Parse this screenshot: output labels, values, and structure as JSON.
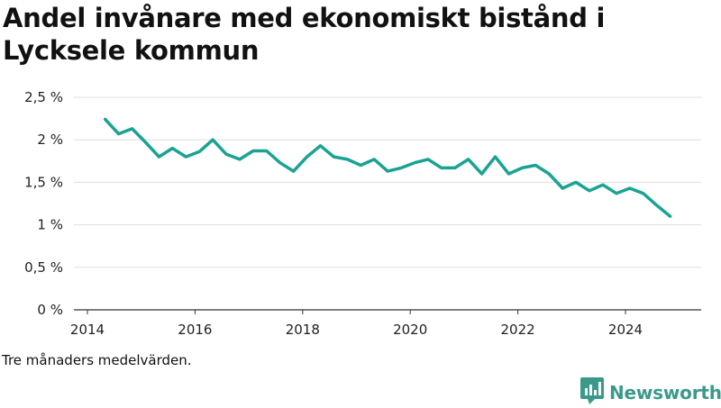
{
  "title": "Andel invånare med ekonomiskt bistånd i Lycksele kommun",
  "footnote": "Tre månaders medelvärden.",
  "brand": {
    "name": "Newsworthy",
    "icon": "newsworthy-logo-icon",
    "color": "#3a9a8a"
  },
  "chart_data": {
    "type": "line",
    "title": "Andel invånare med ekonomiskt bistånd i Lycksele kommun",
    "xlabel": "",
    "ylabel": "",
    "x_ticks": [
      "2014",
      "2016",
      "2018",
      "2020",
      "2022",
      "2024"
    ],
    "y_ticks": [
      "0 %",
      "0,5 %",
      "1 %",
      "1,5 %",
      "2 %",
      "2,5 %"
    ],
    "ylim": [
      0,
      2.5
    ],
    "xlim": [
      2014,
      2024.9
    ],
    "grid": true,
    "line_color": "#1aa393",
    "series": [
      {
        "x": [
          2014.33,
          2014.58,
          2014.83,
          2015.08,
          2015.33,
          2015.58,
          2015.83,
          2016.08,
          2016.33,
          2016.58,
          2016.83,
          2017.08,
          2017.33,
          2017.58,
          2017.83,
          2018.08,
          2018.33,
          2018.58,
          2018.83,
          2019.08,
          2019.33,
          2019.58,
          2019.83,
          2020.08,
          2020.33,
          2020.58,
          2020.83,
          2021.08,
          2021.33,
          2021.58,
          2021.83,
          2022.08,
          2022.33,
          2022.58,
          2022.83,
          2023.08,
          2023.33,
          2023.58,
          2023.83,
          2024.08,
          2024.33,
          2024.58,
          2024.83
        ],
        "values": [
          2.24,
          2.07,
          2.13,
          1.97,
          1.8,
          1.9,
          1.8,
          1.86,
          2.0,
          1.83,
          1.77,
          1.87,
          1.87,
          1.73,
          1.63,
          1.8,
          1.93,
          1.8,
          1.77,
          1.7,
          1.77,
          1.63,
          1.67,
          1.73,
          1.77,
          1.67,
          1.67,
          1.77,
          1.6,
          1.8,
          1.6,
          1.67,
          1.7,
          1.6,
          1.43,
          1.5,
          1.4,
          1.47,
          1.37,
          1.43,
          1.37,
          1.23,
          1.1
        ]
      }
    ]
  }
}
